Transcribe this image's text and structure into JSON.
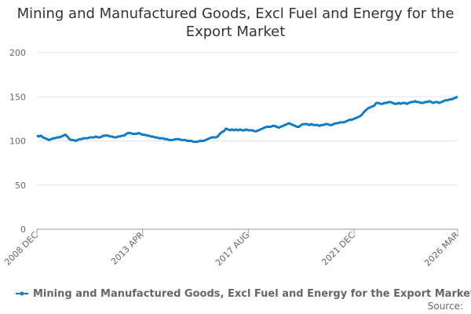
{
  "chart_data": {
    "type": "line",
    "title": "Mining and Manufactured Goods, Excl Fuel and Energy for the Export Market",
    "source": "Source:",
    "categories": [
      "2008 DEC",
      null,
      null,
      null,
      null,
      null,
      null,
      null,
      null,
      null,
      null,
      null,
      null,
      null,
      null,
      null,
      null,
      null,
      null,
      null,
      null,
      null,
      null,
      null,
      null,
      null,
      null,
      null,
      null,
      null,
      null,
      null,
      null,
      null,
      null,
      null,
      null,
      null,
      null,
      null,
      null,
      null,
      null,
      null,
      null,
      null,
      null,
      null,
      null,
      null,
      null,
      null,
      "2013 APR",
      null,
      null,
      null,
      null,
      null,
      null,
      null,
      null,
      null,
      null,
      null,
      null,
      null,
      null,
      null,
      null,
      null,
      null,
      null,
      null,
      null,
      null,
      null,
      null,
      null,
      null,
      null,
      null,
      null,
      null,
      null,
      null,
      null,
      null,
      null,
      null,
      null,
      null,
      null,
      null,
      null,
      null,
      null,
      null,
      null,
      null,
      null,
      null,
      null,
      null,
      null,
      "2017 AUG",
      null,
      null,
      null,
      null,
      null,
      null,
      null,
      null,
      null,
      null,
      null,
      null,
      null,
      null,
      null,
      null,
      null,
      null,
      null,
      null,
      null,
      null,
      null,
      null,
      null,
      null,
      null,
      null,
      null,
      null,
      null,
      null,
      null,
      null,
      null,
      null,
      null,
      null,
      null,
      null,
      null,
      null,
      null,
      null,
      null,
      null,
      null,
      null,
      null,
      null,
      null,
      "2021 DEC",
      null,
      null,
      null,
      null,
      null,
      null,
      null,
      null,
      null,
      null,
      null,
      null,
      null,
      null,
      null,
      null,
      null,
      null,
      null,
      null,
      null,
      null,
      null,
      null,
      null,
      null,
      null,
      null,
      null,
      null,
      null,
      null,
      null,
      null,
      null,
      null,
      null,
      null,
      null,
      null,
      null,
      null,
      null,
      null,
      null,
      null,
      null,
      null,
      null,
      null,
      "2026 MAR"
    ],
    "series": [
      {
        "name": "Mining and Manufactured Goods, Excl Fuel and Energy for the Export Market",
        "color": "#0f7dc2",
        "values": [
          106,
          105,
          106,
          104,
          103,
          102,
          101,
          102,
          103,
          103,
          104,
          104,
          105,
          106,
          107,
          105,
          102,
          101,
          101,
          100,
          101,
          102,
          102,
          103,
          103,
          103,
          104,
          104,
          104,
          105,
          104,
          104,
          105,
          106,
          106,
          106,
          105,
          105,
          104,
          104,
          105,
          105,
          106,
          106,
          108,
          109,
          109,
          108,
          108,
          108,
          109,
          108,
          107,
          107,
          106,
          106,
          105,
          105,
          104,
          104,
          103,
          103,
          103,
          102,
          102,
          101,
          101,
          101,
          102,
          102,
          102,
          101,
          101,
          101,
          100,
          100,
          100,
          99,
          99,
          99,
          100,
          100,
          100,
          101,
          102,
          103,
          104,
          104,
          104,
          105,
          108,
          110,
          111,
          114,
          113,
          112,
          113,
          112,
          113,
          112,
          113,
          112,
          112,
          113,
          112,
          112,
          112,
          111,
          111,
          112,
          113,
          114,
          115,
          116,
          116,
          116,
          117,
          117,
          116,
          115,
          116,
          117,
          118,
          119,
          120,
          119,
          118,
          117,
          116,
          116,
          118,
          119,
          119,
          119,
          118,
          119,
          118,
          118,
          118,
          117,
          118,
          118,
          119,
          119,
          118,
          118,
          119,
          120,
          120,
          121,
          121,
          121,
          122,
          123,
          124,
          124,
          125,
          126,
          127,
          128,
          130,
          133,
          135,
          137,
          138,
          139,
          140,
          143,
          143,
          142,
          142,
          143,
          143,
          144,
          144,
          143,
          142,
          142,
          143,
          142,
          143,
          143,
          142,
          143,
          144,
          144,
          145,
          144,
          144,
          143,
          143,
          144,
          144,
          145,
          144,
          143,
          144,
          144,
          143,
          144,
          145,
          146,
          146,
          147,
          147,
          148,
          149,
          150
        ]
      }
    ],
    "ylim": [
      0,
      200
    ],
    "yticks": [
      0,
      50,
      100,
      150,
      200
    ],
    "grid": true
  }
}
